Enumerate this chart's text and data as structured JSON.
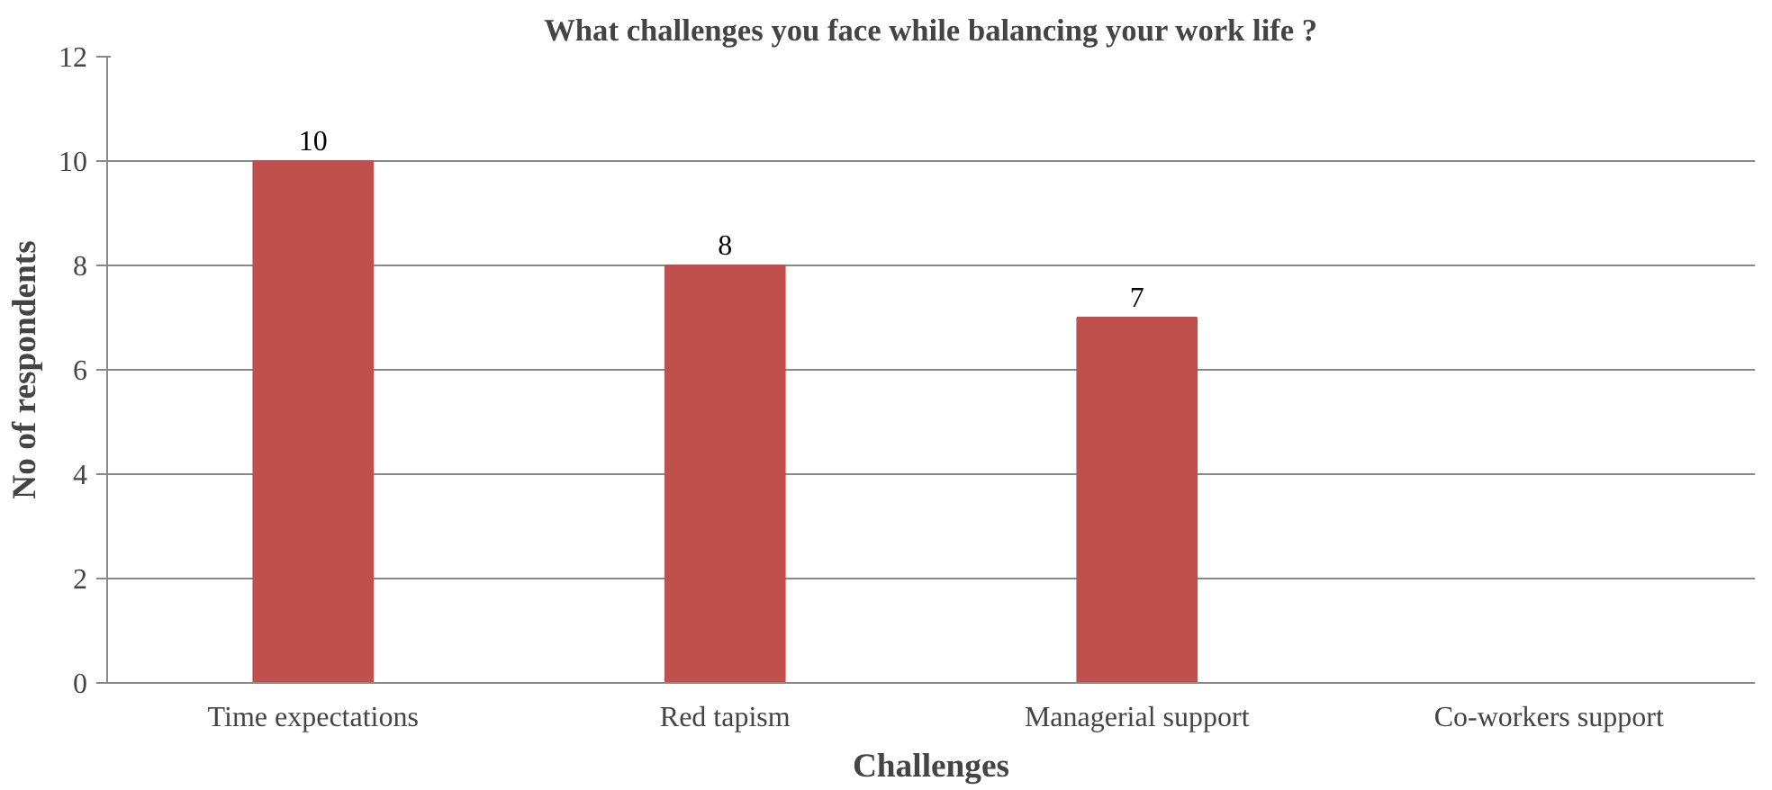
{
  "chart_data": {
    "type": "bar",
    "title": "What challenges you face while balancing your work life ?",
    "xlabel": "Challenges",
    "ylabel": "No of respondents",
    "categories": [
      "Time expectations",
      "Red tapism",
      "Managerial support",
      "Co-workers support"
    ],
    "values": [
      10,
      8,
      7,
      null
    ],
    "value_labels": [
      "10",
      "8",
      "7",
      null
    ],
    "color": "#c0504d",
    "ylim": [
      0,
      12
    ],
    "yticks": [
      0,
      2,
      4,
      6,
      8,
      10,
      12
    ],
    "grid": "y"
  }
}
